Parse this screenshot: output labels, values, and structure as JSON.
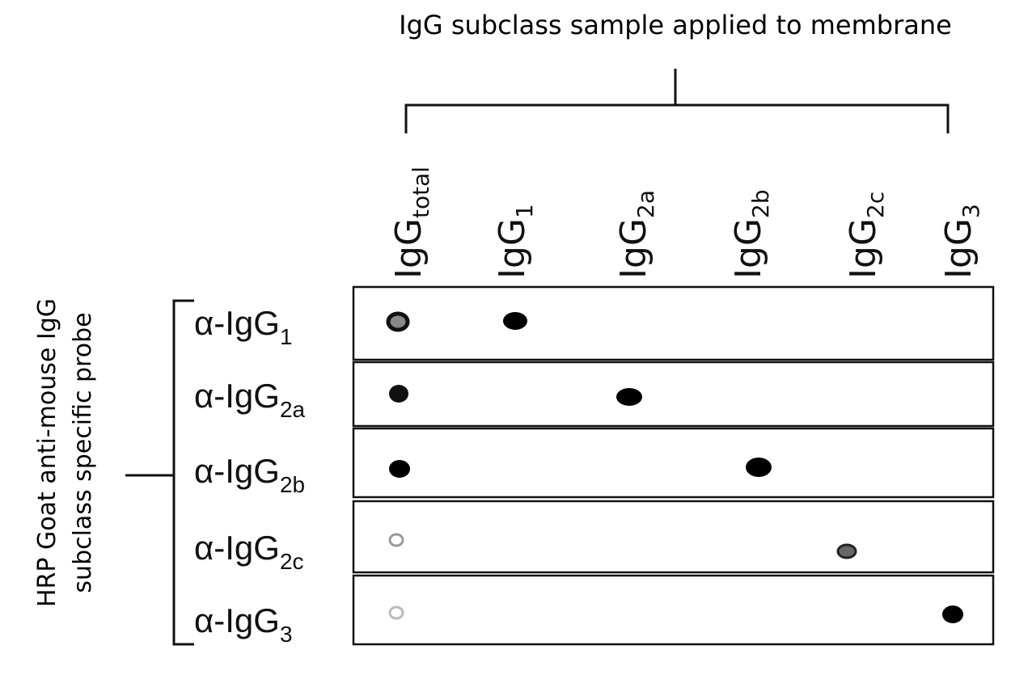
{
  "title": "IgG subclass sample applied to membrane",
  "columns": [
    {
      "base": "IgG",
      "sub": "total"
    },
    {
      "base": "IgG",
      "sub": "1"
    },
    {
      "base": "IgG",
      "sub": "2a"
    },
    {
      "base": "IgG",
      "sub": "2b"
    },
    {
      "base": "IgG",
      "sub": "2c"
    },
    {
      "base": "IgG",
      "sub": "3"
    }
  ],
  "rows": [
    {
      "prefix": "α-IgG",
      "sub": "1"
    },
    {
      "prefix": "α-IgG",
      "sub": "2a"
    },
    {
      "prefix": "α-IgG",
      "sub": "2b"
    },
    {
      "prefix": "α-IgG",
      "sub": "2c"
    },
    {
      "prefix": "α-IgG",
      "sub": "3"
    }
  ],
  "probe_label": [
    "HRP Goat anti-mouse IgG",
    "subclass specific probe"
  ]
}
